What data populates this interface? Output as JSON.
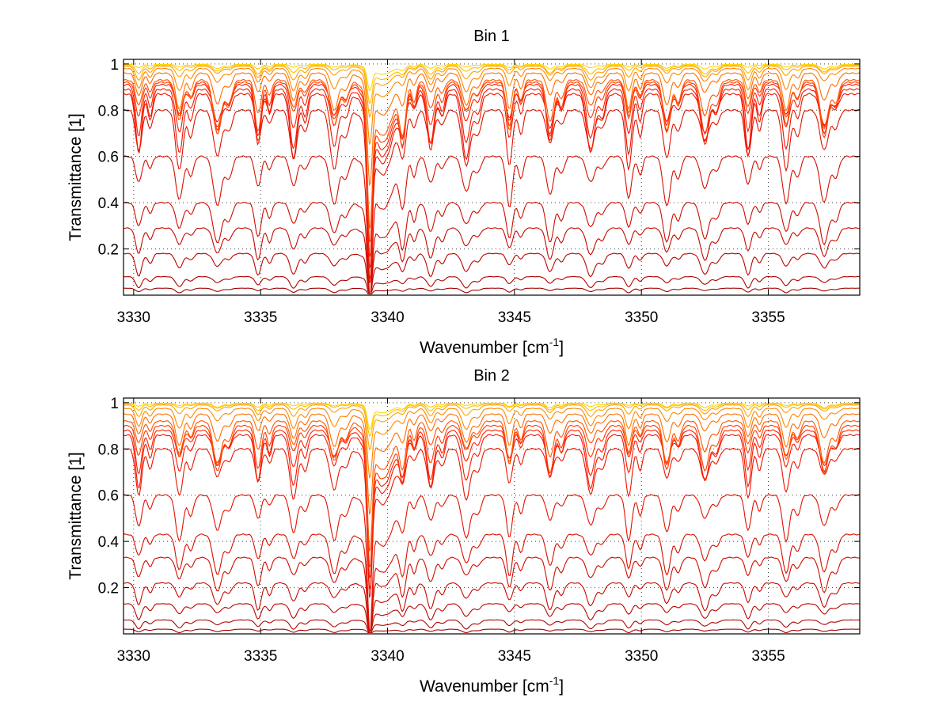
{
  "chart_data": [
    {
      "type": "line",
      "title": "Bin 1",
      "xlabel": "Wavenumber [cm",
      "xlabel_sup": "-1",
      "xlabel_close": "]",
      "ylabel": "Transmittance [1]",
      "xlim": [
        3329.6,
        3358.6
      ],
      "ylim": [
        0.0,
        1.02
      ],
      "xticks": [
        3330,
        3335,
        3340,
        3345,
        3350,
        3355
      ],
      "yticks": [
        0.2,
        0.4,
        0.6,
        0.8,
        1.0
      ],
      "ytick_labels": [
        "0.2",
        "0.4",
        "0.6",
        "0.8",
        "1"
      ],
      "grid": true,
      "strong_line_center": 3339.3,
      "line_centers": [
        3330.2,
        3331.8,
        3333.3,
        3334.9,
        3336.3,
        3337.9,
        3340.6,
        3341.7,
        3343.1,
        3344.8,
        3346.4,
        3348.0,
        3349.5,
        3351.0,
        3352.5,
        3354.2,
        3355.7,
        3357.2
      ],
      "series_color_dark": "#a50000",
      "series_color_mid": "#ff1a00",
      "series_color_light": "#ffd700",
      "curves": [
        {
          "baseline": 0.03,
          "depth": 0.02
        },
        {
          "baseline": 0.08,
          "depth": 0.05
        },
        {
          "baseline": 0.18,
          "depth": 0.1
        },
        {
          "baseline": 0.29,
          "depth": 0.14
        },
        {
          "baseline": 0.4,
          "depth": 0.18
        },
        {
          "baseline": 0.6,
          "depth": 0.22
        },
        {
          "baseline": 0.8,
          "depth": 0.26
        },
        {
          "baseline": 0.87,
          "depth": 0.28
        },
        {
          "baseline": 0.89,
          "depth": 0.27
        },
        {
          "baseline": 0.91,
          "depth": 0.26
        },
        {
          "baseline": 0.92,
          "depth": 0.24
        },
        {
          "baseline": 0.93,
          "depth": 0.22
        },
        {
          "baseline": 0.96,
          "depth": 0.16
        },
        {
          "baseline": 0.98,
          "depth": 0.1
        },
        {
          "baseline": 0.99,
          "depth": 0.06
        },
        {
          "baseline": 0.995,
          "depth": 0.04
        },
        {
          "baseline": 0.998,
          "depth": 0.02
        }
      ]
    },
    {
      "type": "line",
      "title": "Bin 2",
      "xlabel": "Wavenumber [cm",
      "xlabel_sup": "-1",
      "xlabel_close": "]",
      "ylabel": "Transmittance [1]",
      "xlim": [
        3329.6,
        3358.6
      ],
      "ylim": [
        0.0,
        1.02
      ],
      "xticks": [
        3330,
        3335,
        3340,
        3345,
        3350,
        3355
      ],
      "yticks": [
        0.2,
        0.4,
        0.6,
        0.8,
        1.0
      ],
      "ytick_labels": [
        "0.2",
        "0.4",
        "0.6",
        "0.8",
        "1"
      ],
      "grid": true,
      "strong_line_center": 3339.3,
      "line_centers": [
        3330.2,
        3331.8,
        3333.3,
        3334.9,
        3336.3,
        3337.9,
        3340.6,
        3341.7,
        3343.1,
        3344.8,
        3346.4,
        3348.0,
        3349.5,
        3351.0,
        3352.5,
        3354.2,
        3355.7,
        3357.2
      ],
      "series_color_dark": "#a50000",
      "series_color_mid": "#ff1a00",
      "series_color_light": "#ffd700",
      "curves": [
        {
          "baseline": 0.02,
          "depth": 0.015
        },
        {
          "baseline": 0.06,
          "depth": 0.04
        },
        {
          "baseline": 0.13,
          "depth": 0.07
        },
        {
          "baseline": 0.22,
          "depth": 0.12
        },
        {
          "baseline": 0.33,
          "depth": 0.15
        },
        {
          "baseline": 0.43,
          "depth": 0.18
        },
        {
          "baseline": 0.6,
          "depth": 0.2
        },
        {
          "baseline": 0.8,
          "depth": 0.22
        },
        {
          "baseline": 0.86,
          "depth": 0.23
        },
        {
          "baseline": 0.88,
          "depth": 0.22
        },
        {
          "baseline": 0.9,
          "depth": 0.21
        },
        {
          "baseline": 0.92,
          "depth": 0.19
        },
        {
          "baseline": 0.95,
          "depth": 0.14
        },
        {
          "baseline": 0.975,
          "depth": 0.09
        },
        {
          "baseline": 0.99,
          "depth": 0.05
        },
        {
          "baseline": 0.995,
          "depth": 0.03
        },
        {
          "baseline": 0.998,
          "depth": 0.02
        }
      ]
    }
  ]
}
